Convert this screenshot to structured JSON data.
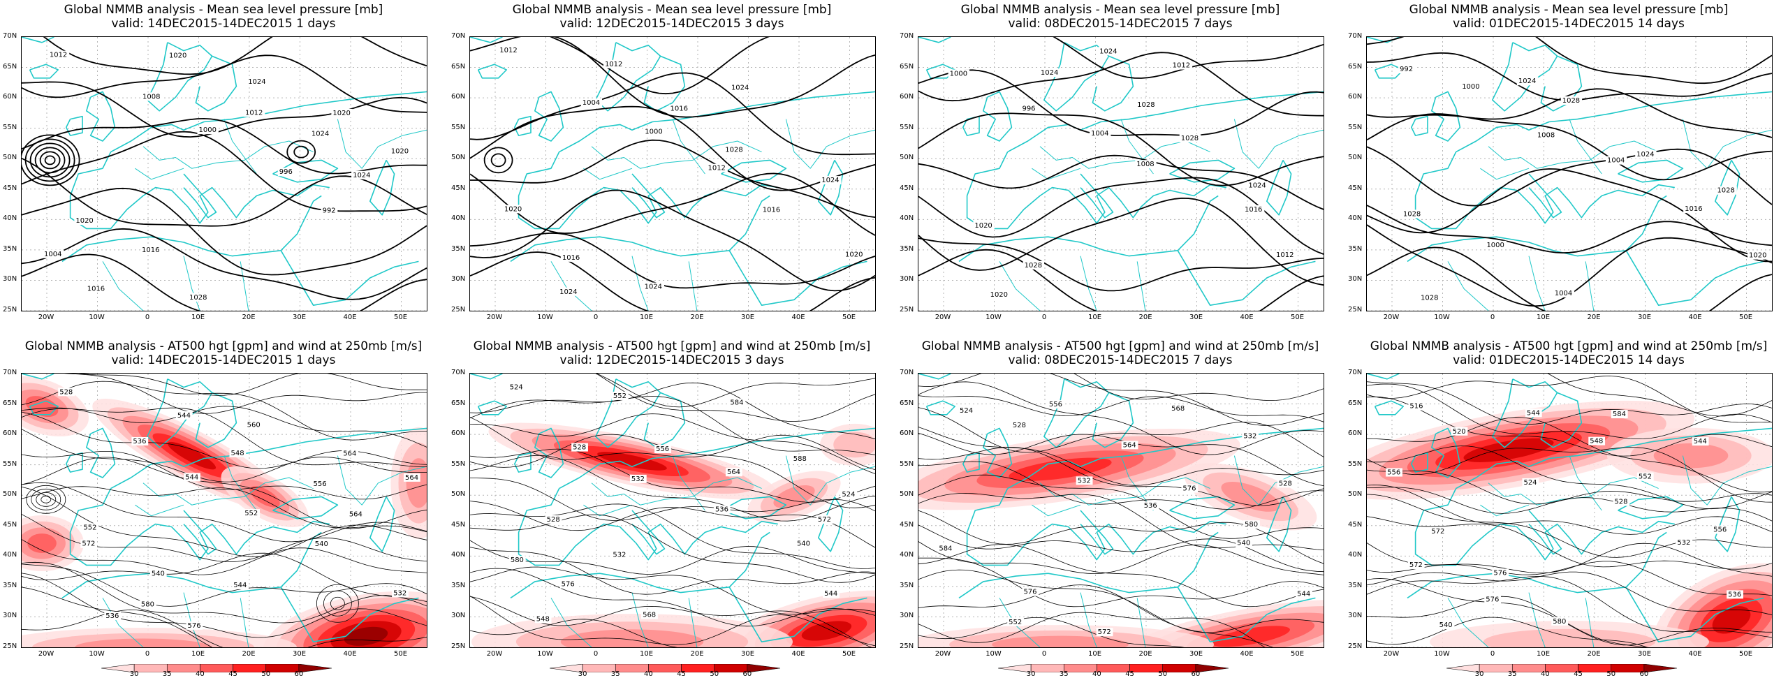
{
  "top_title": "Global NMMB analysis - Mean sea level pressure [mb]",
  "bottom_title": "Global NMMB analysis - AT500 hgt [gpm] and wind at 250mb [m/s]",
  "periods": [
    {
      "valid": "valid: 14DEC2015-14DEC2015   1 days"
    },
    {
      "valid": "valid: 12DEC2015-14DEC2015   3 days"
    },
    {
      "valid": "valid: 08DEC2015-14DEC2015   7 days"
    },
    {
      "valid": "valid: 01DEC2015-14DEC2015   14 days"
    }
  ],
  "lat_labels": [
    "70N",
    "65N",
    "60N",
    "55N",
    "50N",
    "45N",
    "40N",
    "35N",
    "30N",
    "25N"
  ],
  "lon_labels": [
    "20W",
    "10W",
    "0",
    "10E",
    "20E",
    "30E",
    "40E",
    "50E"
  ],
  "colorbar_labels": [
    "30",
    "35",
    "40",
    "45",
    "50",
    "60"
  ],
  "colorbar_colors": [
    "#ffe0e0",
    "#ffb8b8",
    "#ff8c8c",
    "#ff5a5a",
    "#ff2020",
    "#d00000",
    "#900000"
  ],
  "colors": {
    "coast": "#20c8c8",
    "contour": "#000000",
    "grid": "#b4b4b4"
  },
  "mslp_labels": [
    [
      "1012",
      "1008",
      "1000",
      "996",
      "992",
      "1004",
      "1016",
      "1020",
      "1012",
      "1024",
      "1024",
      "1020",
      "1016",
      "1028",
      "1024",
      "1020",
      "1020"
    ],
    [
      "1012",
      "1004",
      "1000",
      "1012",
      "1016",
      "1020",
      "1024",
      "1012",
      "1016",
      "1028",
      "1024",
      "1020",
      "1016",
      "1024",
      "1024"
    ],
    [
      "1000",
      "996",
      "1004",
      "1008",
      "1016",
      "1012",
      "1020",
      "1024",
      "1028",
      "1028",
      "1024",
      "1020",
      "1028",
      "1024",
      "1012"
    ],
    [
      "992",
      "1000",
      "1008",
      "1004",
      "1016",
      "1020",
      "1028",
      "1024",
      "1028",
      "1024",
      "1028",
      "1028",
      "1000",
      "1004"
    ]
  ],
  "hgt_labels": [
    [
      "528",
      "536",
      "544",
      "552",
      "540",
      "532",
      "536",
      "544",
      "548",
      "556",
      "564",
      "572",
      "580",
      "576",
      "560",
      "564",
      "564",
      "552",
      "540",
      "544"
    ],
    [
      "524",
      "528",
      "532",
      "536",
      "540",
      "544",
      "548",
      "552",
      "556",
      "564",
      "572",
      "580",
      "576",
      "568",
      "584",
      "588",
      "524",
      "528",
      "532"
    ],
    [
      "524",
      "528",
      "532",
      "536",
      "540",
      "544",
      "552",
      "556",
      "564",
      "576",
      "580",
      "584",
      "576",
      "572",
      "568",
      "532",
      "528"
    ],
    [
      "516",
      "520",
      "524",
      "528",
      "532",
      "536",
      "540",
      "544",
      "548",
      "552",
      "556",
      "572",
      "576",
      "580",
      "584",
      "544",
      "556",
      "572",
      "576"
    ]
  ]
}
